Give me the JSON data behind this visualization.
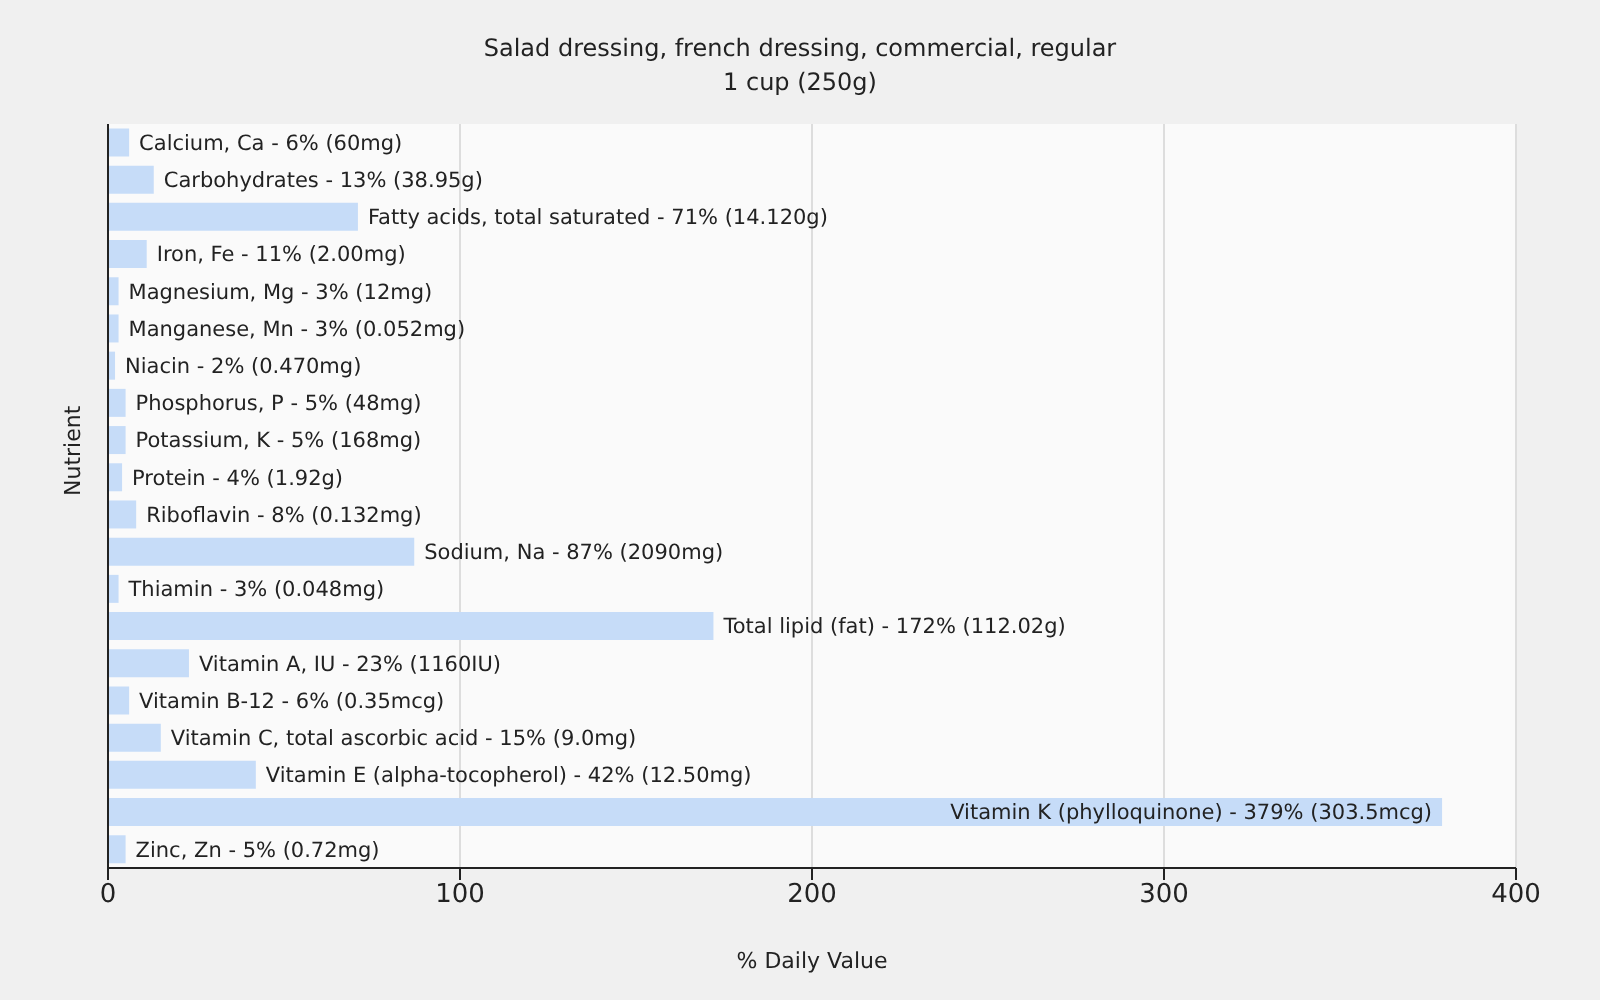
{
  "chart_data": {
    "type": "bar",
    "orientation": "horizontal",
    "title": "Salad dressing, french dressing, commercial, regular",
    "subtitle": "1 cup (250g)",
    "xlabel": "% Daily Value",
    "ylabel": "Nutrient",
    "categories": [
      "Calcium, Ca - 6% (60mg)",
      "Carbohydrates - 13% (38.95g)",
      "Fatty acids, total saturated - 71% (14.120g)",
      "Iron, Fe - 11% (2.00mg)",
      "Magnesium, Mg - 3% (12mg)",
      "Manganese, Mn - 3% (0.052mg)",
      "Niacin - 2% (0.470mg)",
      "Phosphorus, P - 5% (48mg)",
      "Potassium, K - 5% (168mg)",
      "Protein - 4% (1.92g)",
      "Riboflavin - 8% (0.132mg)",
      "Sodium, Na - 87% (2090mg)",
      "Thiamin - 3% (0.048mg)",
      "Total lipid (fat) - 172% (112.02g)",
      "Vitamin A, IU - 23% (1160IU)",
      "Vitamin B-12 - 6% (0.35mcg)",
      "Vitamin C, total ascorbic acid - 15% (9.0mg)",
      "Vitamin E (alpha-tocopherol) - 42% (12.50mg)",
      "Vitamin K (phylloquinone) - 379% (303.5mcg)",
      "Zinc, Zn - 5% (0.72mg)"
    ],
    "values": [
      6,
      13,
      71,
      11,
      3,
      3,
      2,
      5,
      5,
      4,
      8,
      87,
      3,
      172,
      23,
      6,
      15,
      42,
      379,
      5
    ],
    "color": "#c6dcf8",
    "xlim": [
      0,
      400
    ],
    "xticks": [
      0,
      100,
      200,
      300,
      400
    ],
    "grid": "x"
  }
}
